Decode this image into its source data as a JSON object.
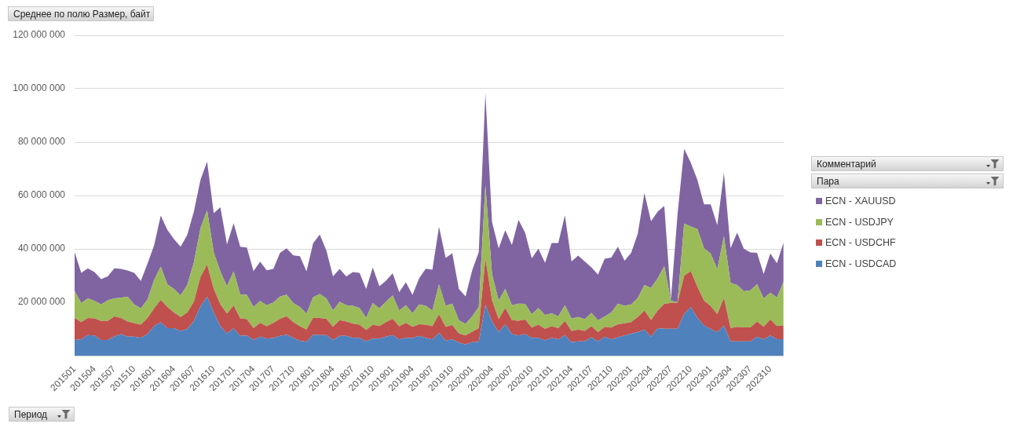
{
  "chart_data": {
    "type": "area",
    "title": "Среднее по полю Размер, байт",
    "xlabel": "Период",
    "legend_title": "Пара",
    "annotations": [
      "Комментарий"
    ],
    "categories": [
      "201501",
      null,
      null,
      "201504",
      null,
      null,
      "201507",
      null,
      null,
      "201510",
      null,
      null,
      "201601",
      null,
      null,
      "201604",
      null,
      null,
      "201607",
      null,
      null,
      "201610",
      null,
      null,
      "201701",
      null,
      null,
      "201704",
      null,
      null,
      "201707",
      null,
      null,
      "201710",
      null,
      null,
      "201801",
      null,
      null,
      "201804",
      null,
      null,
      "201807",
      null,
      null,
      "201810",
      null,
      null,
      "201901",
      null,
      null,
      "201904",
      null,
      null,
      "201907",
      null,
      null,
      "201910",
      null,
      null,
      "202001",
      null,
      null,
      "202004",
      null,
      null,
      "202007",
      null,
      null,
      "202010",
      null,
      null,
      "202101",
      null,
      null,
      "202104",
      null,
      null,
      "202107",
      null,
      null,
      "202110",
      null,
      null,
      "202201",
      null,
      null,
      "202204",
      null,
      null,
      "202207",
      null,
      null,
      "202210",
      null,
      null,
      "202301",
      null,
      null,
      "202304",
      null,
      null,
      "202307",
      null,
      null,
      "202310",
      null,
      null
    ],
    "series": [
      {
        "name": "ECN - USDCAD",
        "color": "#4f81bd",
        "values": [
          5900000,
          6100000,
          7700000,
          7600000,
          5900000,
          5900000,
          7200000,
          8100000,
          7100000,
          7100000,
          6700000,
          8100000,
          11100000,
          12500000,
          10300000,
          10300000,
          9300000,
          10000000,
          13000000,
          18500000,
          22100000,
          16200000,
          11000000,
          8300000,
          10300000,
          7400000,
          7600000,
          5900000,
          7100000,
          6400000,
          6600000,
          7400000,
          7900000,
          6700000,
          5600000,
          5200000,
          7900000,
          7700000,
          7700000,
          5900000,
          7400000,
          7400000,
          6700000,
          6700000,
          5400000,
          6400000,
          6400000,
          7100000,
          7700000,
          6100000,
          6700000,
          6600000,
          7400000,
          6700000,
          6100000,
          8600000,
          5600000,
          6200000,
          4900000,
          4200000,
          5100000,
          5200000,
          19100000,
          12800000,
          8800000,
          11800000,
          8100000,
          7600000,
          8100000,
          6700000,
          6700000,
          5700000,
          6700000,
          6100000,
          7700000,
          5100000,
          5400000,
          5400000,
          6900000,
          5400000,
          7100000,
          6100000,
          6900000,
          7600000,
          8200000,
          8800000,
          9800000,
          7100000,
          10300000,
          10100000,
          10100000,
          10100000,
          15700000,
          18200000,
          14200000,
          11300000,
          10000000,
          8800000,
          11300000,
          5400000,
          5400000,
          5400000,
          5400000,
          7100000,
          6100000,
          7600000,
          6200000,
          6200000
        ]
      },
      {
        "name": "ECN - USDCHF",
        "color": "#c0504d",
        "values": [
          8200000,
          6500000,
          6400000,
          6400000,
          7100000,
          7100000,
          7500000,
          6000000,
          5700000,
          5100000,
          4900000,
          6000000,
          6600000,
          8400000,
          7900000,
          5900000,
          5200000,
          6200000,
          7200000,
          11000000,
          12000000,
          8800000,
          8200000,
          7400000,
          8500000,
          6600000,
          6100000,
          4400000,
          5200000,
          4600000,
          5700000,
          6400000,
          6900000,
          5900000,
          5400000,
          4600000,
          6400000,
          6400000,
          6100000,
          4900000,
          5900000,
          5400000,
          5300000,
          4900000,
          4200000,
          5200000,
          4700000,
          5500000,
          6100000,
          4900000,
          5600000,
          4200000,
          4400000,
          4900000,
          4900000,
          6900000,
          5200000,
          5300000,
          3400000,
          3400000,
          3900000,
          5100000,
          17200000,
          7900000,
          4900000,
          6100000,
          5200000,
          5500000,
          5400000,
          3800000,
          4900000,
          4400000,
          4300000,
          4200000,
          5300000,
          4200000,
          4400000,
          3900000,
          4100000,
          3400000,
          3700000,
          4400000,
          4900000,
          4500000,
          4400000,
          5700000,
          7100000,
          6200000,
          6600000,
          9300000,
          9700000,
          9700000,
          14200000,
          13500000,
          11500000,
          9300000,
          8600000,
          6700000,
          10300000,
          4900000,
          5400000,
          5200000,
          5200000,
          5700000,
          4700000,
          6000000,
          4900000,
          5100000
        ]
      },
      {
        "name": "ECN - USDJPY",
        "color": "#9bbb59",
        "values": [
          10200000,
          7100000,
          7400000,
          6500000,
          6200000,
          7700000,
          6800000,
          7600000,
          9300000,
          7000000,
          6100000,
          6900000,
          10600000,
          12500000,
          8500000,
          8800000,
          8100000,
          10300000,
          14700000,
          18200000,
          20400000,
          13700000,
          12300000,
          10300000,
          12800000,
          8900000,
          9100000,
          7900000,
          8200000,
          7900000,
          7600000,
          8300000,
          8100000,
          7100000,
          7200000,
          5900000,
          7600000,
          9000000,
          7700000,
          6100000,
          6900000,
          6100000,
          6700000,
          6300000,
          4600000,
          8100000,
          6600000,
          7600000,
          8800000,
          5900000,
          6600000,
          5100000,
          7400000,
          7100000,
          5900000,
          11200000,
          7900000,
          8000000,
          4900000,
          4300000,
          5700000,
          7900000,
          27500000,
          9800000,
          6900000,
          7200000,
          5600000,
          6400000,
          5900000,
          5000000,
          6300000,
          5100000,
          4900000,
          4400000,
          5900000,
          4600000,
          4700000,
          4400000,
          5000000,
          4400000,
          3900000,
          5700000,
          7700000,
          6600000,
          6600000,
          7100000,
          9600000,
          12100000,
          12100000,
          14100000,
          800000,
          200000,
          19600000,
          16700000,
          21700000,
          19600000,
          19600000,
          16900000,
          23100000,
          17000000,
          15700000,
          13500000,
          13900000,
          14000000,
          10600000,
          10000000,
          10700000,
          16400000
        ]
      },
      {
        "name": "ECN - XAUUSD",
        "color": "#8064a2",
        "values": [
          14500000,
          11300000,
          11200000,
          10800000,
          9500000,
          9000000,
          11200000,
          10800000,
          9800000,
          11800000,
          10300000,
          13500000,
          13000000,
          19100000,
          20400000,
          18700000,
          18200000,
          18700000,
          19100000,
          18200000,
          18200000,
          14700000,
          24100000,
          15700000,
          18000000,
          17900000,
          17700000,
          13500000,
          14700000,
          13100000,
          12600000,
          16400000,
          17300000,
          17900000,
          19100000,
          15900000,
          20200000,
          22300000,
          17900000,
          12800000,
          12300000,
          10800000,
          12600000,
          13100000,
          10800000,
          13300000,
          8300000,
          7900000,
          8300000,
          6900000,
          8600000,
          6900000,
          9800000,
          13900000,
          15300000,
          21600000,
          17900000,
          18900000,
          11800000,
          10300000,
          17200000,
          20600000,
          34600000,
          19600000,
          19600000,
          21900000,
          22600000,
          31400000,
          26600000,
          21000000,
          22200000,
          19600000,
          26300000,
          27500000,
          33700000,
          21400000,
          23000000,
          21600000,
          17100000,
          17200000,
          21600000,
          20600000,
          21300000,
          16900000,
          19300000,
          24100000,
          34400000,
          25000000,
          25000000,
          22600000,
          500000,
          33000000,
          28000000,
          23900000,
          18400000,
          16500000,
          18500000,
          16500000,
          23800000,
          13000000,
          19600000,
          16000000,
          14200000,
          11700000,
          9200000,
          14700000,
          12800000,
          14700000
        ]
      }
    ],
    "stacked": true,
    "ylim": [
      0,
      120000000
    ],
    "yticks": [
      {
        "value": 20000000,
        "label": "20 000 000"
      },
      {
        "value": 40000000,
        "label": "40 000 000"
      },
      {
        "value": 60000000,
        "label": "60 000 000"
      },
      {
        "value": 80000000,
        "label": "80 000 000"
      },
      {
        "value": 100000000,
        "label": "100 000 000"
      },
      {
        "value": 120000000,
        "label": "120 000 000"
      }
    ],
    "grid": "y",
    "legend": "right"
  }
}
